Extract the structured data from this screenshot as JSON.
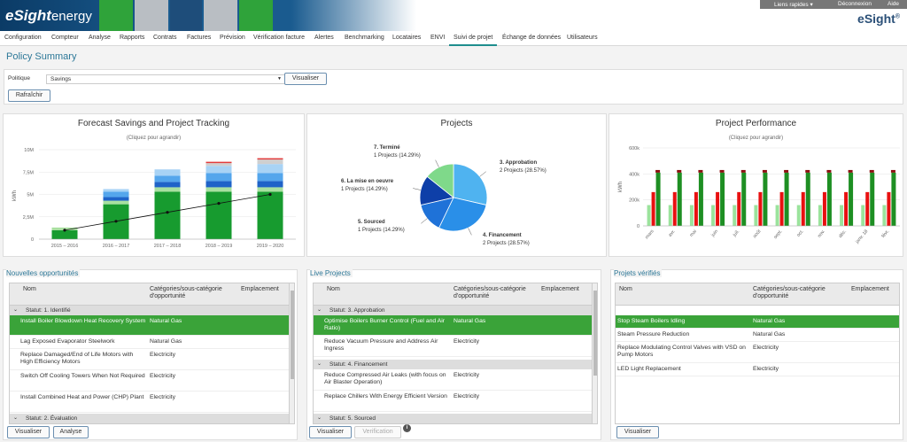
{
  "header": {
    "logo_bold": "eSight",
    "logo_light": "energy",
    "quick_links": "Liens rapides ▾",
    "logout": "Déconnexion",
    "help": "Aide",
    "brand": "eSight",
    "brand_mark": "®",
    "tile_colors": [
      "#2fa33a",
      "#b9bec3",
      "#1e4d7a",
      "#b9bec3",
      "#2fa33a"
    ]
  },
  "nav": [
    "Configuration",
    "Compteur",
    "Analyse",
    "Rapports",
    "Contrats",
    "Factures",
    "Prévision",
    "Vérification facture",
    "Alertes",
    "Benchmarking",
    "Locataires",
    "ENVI",
    "Suivi de projet",
    "Échange de données",
    "Utilisateurs"
  ],
  "nav_active": "Suivi de projet",
  "page_title": "Policy Summary",
  "filter": {
    "policy_label": "Politique",
    "policy_value": "Savings",
    "visualize": "Visualiser",
    "refresh": "Rafraîchir"
  },
  "forecast_chart": {
    "title": "Forecast Savings and Project Tracking",
    "subtitle": "(Cliquez pour agrandir)"
  },
  "projects_chart": {
    "title": "Projects"
  },
  "performance_chart": {
    "title": "Project Performance",
    "subtitle": "(Cliquez pour agrandir)"
  },
  "chart_data": [
    {
      "type": "bar",
      "title": "Forecast Savings and Project Tracking",
      "ylabel": "kWh",
      "categories": [
        "2015 – 2016",
        "2016 – 2017",
        "2017 – 2018",
        "2018 – 2019",
        "2019 – 2020"
      ],
      "ytick_labels": [
        "0",
        "2,5M",
        "5M",
        "7,5M",
        "10M"
      ],
      "ylim": [
        0,
        10000000
      ],
      "stacked": true,
      "series": [
        {
          "color": "#179b2f",
          "values": [
            1000000,
            3900000,
            5300000,
            5300000,
            5300000
          ]
        },
        {
          "color": "#a8e0a0",
          "values": [
            300000,
            400000,
            500000,
            500000,
            500000
          ]
        },
        {
          "color": "#1f63c8",
          "values": [
            0,
            400000,
            600000,
            700000,
            700000
          ]
        },
        {
          "color": "#54a6ec",
          "values": [
            0,
            600000,
            700000,
            900000,
            900000
          ]
        },
        {
          "color": "#a8d3f5",
          "values": [
            0,
            300000,
            700000,
            800000,
            1000000
          ]
        },
        {
          "color": "#cfcfcf",
          "values": [
            0,
            0,
            0,
            300000,
            500000
          ]
        },
        {
          "color": "#e23b3b",
          "values": [
            0,
            0,
            0,
            150000,
            150000
          ]
        }
      ],
      "line": {
        "color": "#111111",
        "values": [
          1000000,
          2000000,
          3000000,
          4000000,
          5000000
        ]
      }
    },
    {
      "type": "pie",
      "title": "Projects",
      "slices": [
        {
          "label": "3. Approbation",
          "detail": "2 Projects (28.57%)",
          "value": 28.57,
          "color": "#4fb3f0"
        },
        {
          "label": "4. Financement",
          "detail": "2 Projects (28.57%)",
          "value": 28.57,
          "color": "#2a8fe8"
        },
        {
          "label": "5. Sourced",
          "detail": "1 Projects (14.29%)",
          "value": 14.29,
          "color": "#1f72d8"
        },
        {
          "label": "6. La mise en oeuvre",
          "detail": "1 Projects (14.29%)",
          "value": 14.29,
          "color": "#0e3fa8"
        },
        {
          "label": "7. Terminé",
          "detail": "1 Projects (14.29%)",
          "value": 14.29,
          "color": "#7fd98a"
        }
      ]
    },
    {
      "type": "bar",
      "title": "Project Performance",
      "ylabel": "kWh",
      "categories": [
        "mars",
        "avr.",
        "mai",
        "juin",
        "juil.",
        "août",
        "sept.",
        "oct.",
        "nov.",
        "déc.",
        "janv. 18",
        "févr."
      ],
      "ytick_labels": [
        "0",
        "200k",
        "400k",
        "600k"
      ],
      "ylim": [
        0,
        600000
      ],
      "series": [
        {
          "color": "#9be39c",
          "values": [
            160000,
            160000,
            160000,
            160000,
            160000,
            160000,
            160000,
            160000,
            160000,
            160000,
            160000,
            160000
          ]
        },
        {
          "color": "#e81010",
          "values": [
            260000,
            260000,
            260000,
            260000,
            260000,
            260000,
            260000,
            260000,
            260000,
            260000,
            260000,
            260000
          ]
        },
        {
          "color": "#1e8f23",
          "values": [
            410000,
            410000,
            410000,
            410000,
            410000,
            410000,
            410000,
            410000,
            410000,
            410000,
            410000,
            410000
          ]
        }
      ],
      "cap": {
        "color": "#8b0f0f",
        "values": [
          430000,
          430000,
          430000,
          430000,
          430000,
          430000,
          430000,
          430000,
          430000,
          430000,
          430000,
          430000
        ]
      }
    }
  ],
  "lists": {
    "new": {
      "title": "Nouvelles opportunités",
      "col_name": "Nom",
      "col_cat": "Catégories/sous-catégorie d'opportunité",
      "col_loc": "Emplacement",
      "group1": "Statut: 1. Identifié",
      "rows": [
        {
          "name": "Install Boiler Blowdown Heat Recovery System",
          "cat": "Natural Gas"
        },
        {
          "name": "Lag Exposed Evaporator Steelwork",
          "cat": "Natural Gas"
        },
        {
          "name": "Replace Damaged/End of Life Motors with High Efficiency Motors",
          "cat": "Electricity"
        },
        {
          "name": "Switch Off Cooling Towers When Not Required",
          "cat": "Electricity"
        },
        {
          "name": "Install Combined Heat and Power (CHP) Plant",
          "cat": "Electricity"
        }
      ],
      "group2": "Statut: 2. Évaluation",
      "btn_visualize": "Visualiser",
      "btn_analyse": "Analyse"
    },
    "live": {
      "title": "Live Projects",
      "col_name": "Nom",
      "col_cat": "Catégories/sous-catégorie d'opportunité",
      "col_loc": "Emplacement",
      "group1": "Statut: 3. Approbation",
      "rows_a": [
        {
          "name": "Optimise Boilers Burner Control (Fuel and Air Ratio)",
          "cat": "Natural Gas"
        },
        {
          "name": "Reduce Vacuum Pressure and Address Air Ingress",
          "cat": "Electricity"
        }
      ],
      "group2": "Statut: 4. Financement",
      "rows_b": [
        {
          "name": "Reduce Compressed Air Leaks (with focus on Air Blaster Operation)",
          "cat": "Electricity"
        },
        {
          "name": "Replace Chillers With Energy Efficient Version",
          "cat": "Electricity"
        }
      ],
      "group3": "Statut: 5. Sourced",
      "btn_visualize": "Visualiser",
      "btn_verify": "Verification"
    },
    "verified": {
      "title": "Projets vérifiés",
      "col_name": "Nom",
      "col_cat": "Catégories/sous-catégorie d'opportunité",
      "col_loc": "Emplacement",
      "rows": [
        {
          "name": "Stop Steam Boilers Idling",
          "cat": "Natural Gas"
        },
        {
          "name": "Steam Pressure Reduction",
          "cat": "Natural Gas"
        },
        {
          "name": "Replace Modulating Control Valves with VSD on Pump Motors",
          "cat": "Electricity"
        },
        {
          "name": "LED Light Replacement",
          "cat": "Electricity"
        }
      ],
      "btn_visualize": "Visualiser"
    }
  }
}
